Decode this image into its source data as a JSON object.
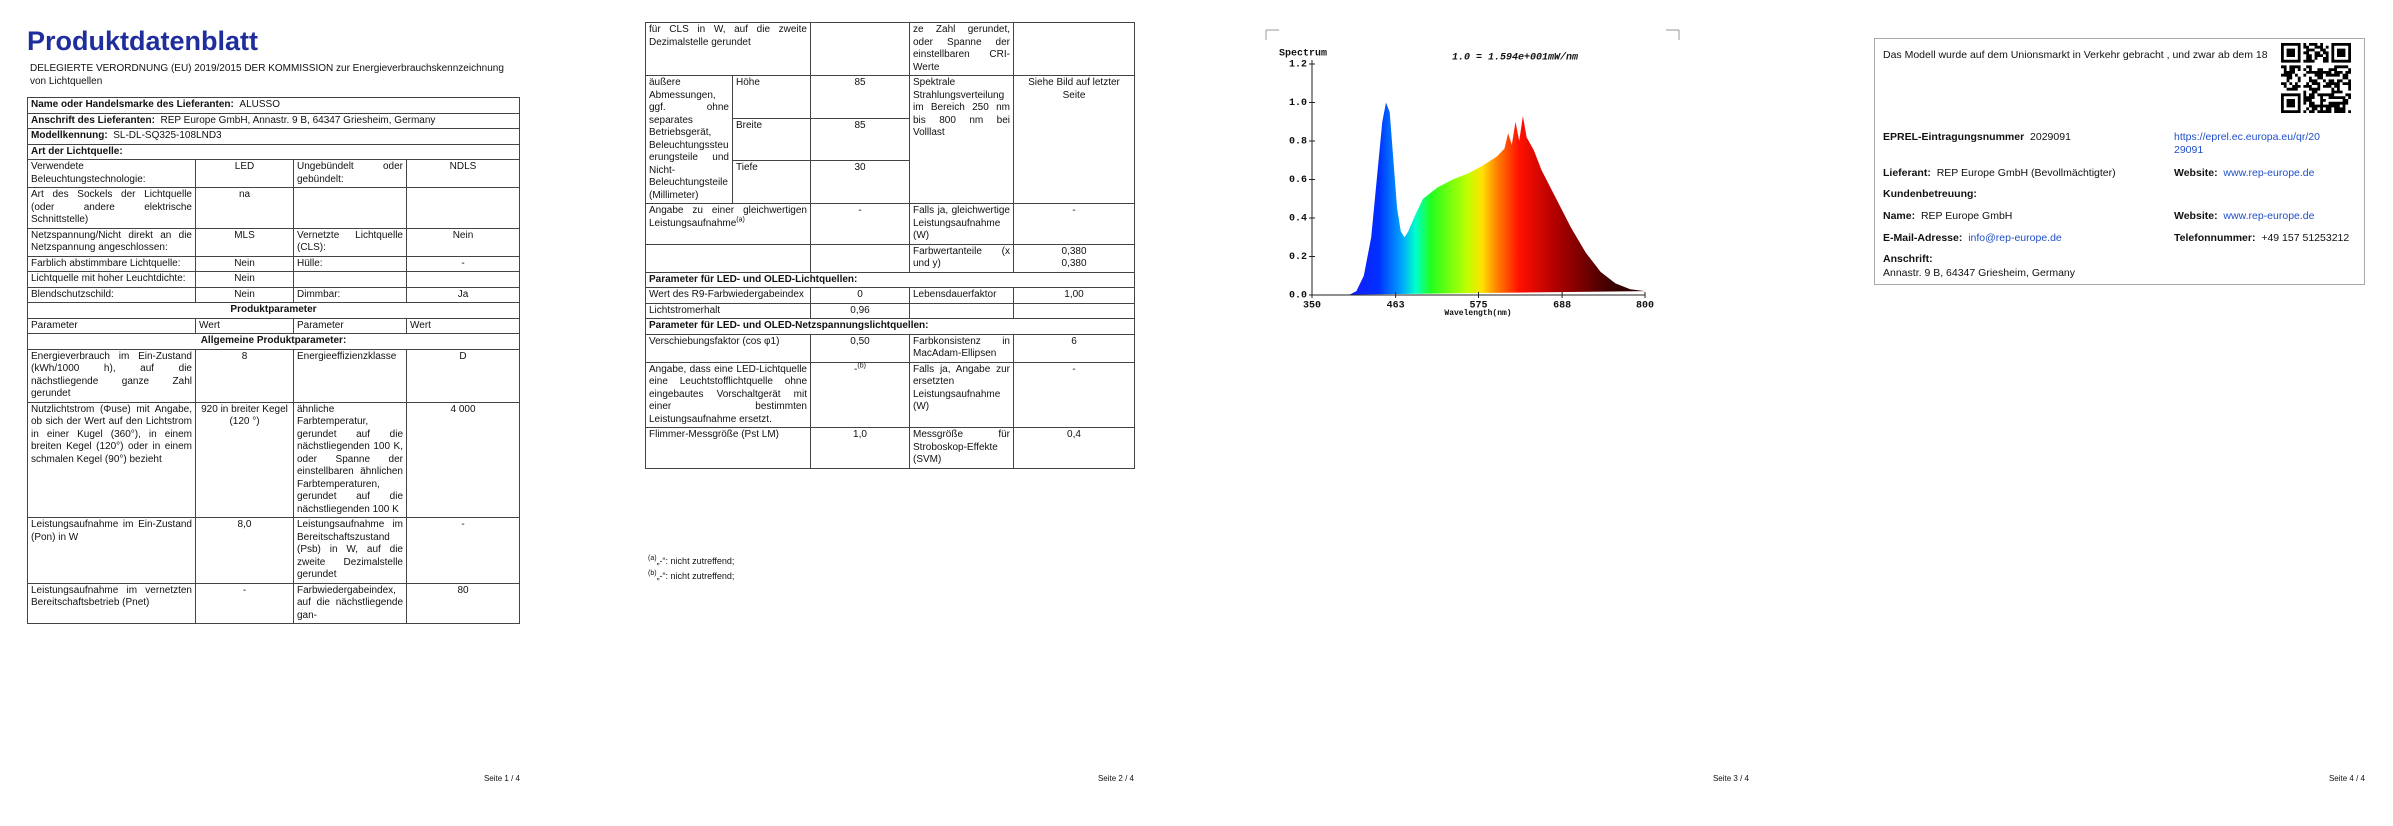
{
  "page1": {
    "title": "Produktdatenblatt",
    "regulation": "DELEGIERTE VERORDNUNG (EU) 2019/2015 DER KOMMISSION zur Energieverbrauchskennzeichnung von Lichtquellen",
    "supplier": [
      {
        "label": "Name oder Handelsmarke des Lieferanten:",
        "value": "ALUSSO"
      },
      {
        "label": "Anschrift des Lieferanten:",
        "value": "REP Europe GmbH, Annastr. 9 B, 64347 Griesheim, Germany"
      },
      {
        "label": "Modellkennung:",
        "value": "SL-DL-SQ325-108LND3"
      }
    ],
    "light_source_heading": "Art der Lichtquelle:",
    "light_source_rows": [
      [
        "Verwendete Beleuchtungstechnologie:",
        "LED",
        "Ungebündelt oder gebündelt:",
        "NDLS"
      ],
      [
        "Art des Sockels der Lichtquelle (oder andere elektrische Schnittstelle)",
        "na",
        null,
        null
      ],
      [
        "Netzspannung/Nicht direkt an die Netzspannung angeschlossen:",
        "MLS",
        "Vernetzte Lichtquelle (CLS):",
        "Nein"
      ],
      [
        "Farblich abstimmbare Lichtquelle:",
        "Nein",
        "Hülle:",
        "-"
      ],
      [
        "Lichtquelle mit hoher Leuchtdichte:",
        "Nein",
        null,
        null
      ],
      [
        "Blendschutzschild:",
        "Nein",
        "Dimmbar:",
        "Ja"
      ]
    ],
    "parameters_heading": "Produktparameter",
    "parameters_header": [
      "Parameter",
      "Wert",
      "Parameter",
      "Wert"
    ],
    "general_heading": "Allgemeine Produktparameter:",
    "general_rows": [
      [
        "Energieverbrauch im Ein-Zustand (kWh/1000 h), auf die nächstliegende ganze Zahl gerundet",
        "8",
        "Energieeffizienzklasse",
        "D"
      ],
      [
        "Nutzlichtstrom (Φuse) mit Angabe, ob sich der Wert auf den Lichtstrom in einer Kugel (360°), in einem breiten Kegel (120°) oder in einem schmalen Kegel (90°) bezieht",
        "920 in breiter Kegel (120 °)",
        "ähnliche Farbtemperatur, gerundet auf die nächstliegenden 100 K, oder Spanne der einstellbaren ähnlichen Farbtemperaturen, gerundet auf die nächstliegenden 100 K",
        "4 000"
      ],
      [
        "Leistungsaufnahme im Ein-Zustand (Pon) in W",
        "8,0",
        "Leistungsaufnahme im Bereitschaftszustand (Psb) in W, auf die zweite Dezimalstelle gerundet",
        "-"
      ],
      [
        "Leistungsaufnahme im vernetzten Bereitschaftsbetrieb (Pnet)",
        "-",
        "Farbwiedergabeindex, auf die nächstliegende gan-",
        "80"
      ]
    ],
    "footer": "Seite 1 / 4"
  },
  "page2": {
    "rows": [
      [
        "für CLS in W, auf die zweite Dezimalstelle gerundet",
        null,
        "ze Zahl gerundet, oder Spanne der einstellbaren CRI-Werte",
        null
      ],
      {
        "label": "äußere Abmessungen, ggf. ohne separates Betriebsgerät, Beleuchtungssteuerungsteile und Nicht-Beleuchtungsteile (Millimeter)",
        "dimensions": [
          {
            "name": "Höhe",
            "value": "85"
          },
          {
            "name": "Breite",
            "value": "85"
          },
          {
            "name": "Tiefe",
            "value": "30"
          }
        ],
        "param": "Spektrale Strahlungsverteilung im Bereich 250 nm bis 800 nm bei Volllast",
        "value": "Siehe Bild auf letzter Seite"
      },
      [
        {
          "text": "Angabe zu einer gleichwertigen Leistungsaufnahme",
          "sup": "(a)"
        },
        "-",
        "Falls ja, gleichwertige Leistungsaufnahme (W)",
        "-"
      ],
      [
        null,
        null,
        "Farbwertanteile (x und y)",
        [
          "0,380",
          "0,380"
        ]
      ],
      "Parameter für LED- und OLED-Lichtquellen:",
      [
        "Wert des R9-Farbwiedergabeindex",
        "0",
        "Lebensdauerfaktor",
        "1,00"
      ],
      [
        "Lichtstromerhalt",
        "0,96",
        null,
        null
      ],
      "Parameter für LED- und OLED-Netzspannungslichtquellen:",
      [
        "Verschiebungsfaktor (cos φ1)",
        "0,50",
        "Farbkonsistenz in MacAdam-Ellipsen",
        "6"
      ],
      [
        "Angabe, dass eine LED-Lichtquelle eine Leuchtstofflichtquelle ohne eingebautes Vorschaltgerät mit einer bestimmten Leistungsaufnahme ersetzt.",
        {
          "text": "-",
          "sup": "(b)"
        },
        "Falls ja, Angabe zur ersetzten Leistungsaufnahme (W)",
        "-"
      ],
      [
        "Flimmer-Messgröße (Pst LM)",
        "1,0",
        "Messgröße für Stroboskop-Effekte (SVM)",
        "0,4"
      ]
    ],
    "footnotes": [
      {
        "marker": "(a)",
        "text": "„-“: nicht zutreffend;"
      },
      {
        "marker": "(b)",
        "text": "„-“: nicht zutreffend;"
      }
    ],
    "footer": "Seite 2 / 4"
  },
  "page3": {
    "spectrum": {
      "type": "area",
      "title": "Spectrum",
      "annotation": "1.0 = 1.594e+001mW/nm",
      "x_label": "Wavelength(nm)",
      "x": [
        350,
        400,
        410,
        420,
        430,
        440,
        445,
        450,
        455,
        460,
        465,
        470,
        475,
        480,
        490,
        500,
        520,
        540,
        560,
        580,
        600,
        610,
        615,
        620,
        625,
        630,
        635,
        640,
        650,
        660,
        680,
        700,
        720,
        740,
        760,
        780,
        800
      ],
      "values": [
        0,
        0,
        0.02,
        0.1,
        0.3,
        0.7,
        0.9,
        1.0,
        0.95,
        0.7,
        0.45,
        0.33,
        0.3,
        0.33,
        0.42,
        0.5,
        0.56,
        0.6,
        0.63,
        0.67,
        0.72,
        0.76,
        0.84,
        0.78,
        0.9,
        0.8,
        0.93,
        0.82,
        0.75,
        0.65,
        0.5,
        0.35,
        0.22,
        0.12,
        0.06,
        0.03,
        0.02
      ],
      "xlim": [
        350,
        800
      ],
      "ylim": [
        0,
        1.2
      ],
      "xticks": [
        350,
        463,
        575,
        688,
        800
      ],
      "yticks": [
        {
          "value": 0,
          "label": "0.0"
        },
        0.2,
        0.4,
        0.6,
        0.8,
        {
          "value": 1,
          "label": "1.0"
        },
        1.2
      ]
    },
    "footer": "Seite 3 / 4"
  },
  "page4": {
    "market_notice": "Das Modell wurde auf dem Unionsmarkt in Verkehr gebracht , und zwar ab dem 18",
    "eprel": {
      "label": "EPREL-Eintragungsnummer",
      "value": "2029091",
      "link": "https://eprel.ec.europa.eu/qr/2029091"
    },
    "supplier": {
      "label": "Lieferant:",
      "value": "REP Europe GmbH (Bevollmächtigter)"
    },
    "supplier_website": {
      "label": "Website:",
      "value": "www.rep-europe.de"
    },
    "customer_service": "Kundenbetreuung:",
    "name": {
      "label": "Name:",
      "value": "REP Europe GmbH"
    },
    "service_website": {
      "label": "Website:",
      "value": "www.rep-europe.de"
    },
    "email": {
      "label": "E-Mail-Adresse:",
      "value": "info@rep-europe.de"
    },
    "phone": {
      "label": "Telefonnummer:",
      "value": "+49 157 51253212"
    },
    "address": {
      "label": "Anschrift:",
      "value": "Annastr. 9 B, 64347 Griesheim, Germany"
    },
    "footer": "Seite 4 / 4"
  }
}
